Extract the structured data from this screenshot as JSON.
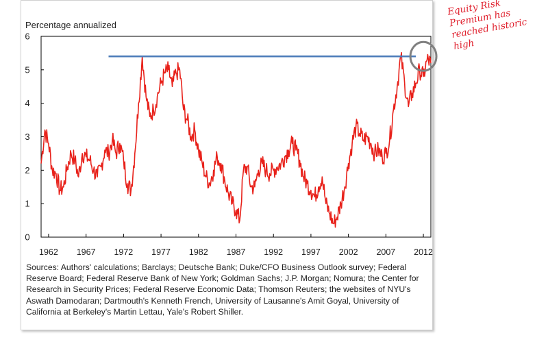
{
  "chart_data": {
    "type": "line",
    "ylabel": "Percentage annualized",
    "ylim": [
      0,
      6
    ],
    "xlim": [
      1961,
      2013
    ],
    "x_ticks": [
      "1962",
      "1967",
      "1972",
      "1977",
      "1982",
      "1987",
      "1992",
      "1997",
      "2002",
      "2007",
      "2012"
    ],
    "y_ticks": [
      "0",
      "1",
      "2",
      "3",
      "4",
      "5",
      "6"
    ],
    "series": [
      {
        "color": "#e8221b",
        "points": [
          [
            1961.0,
            2.2
          ],
          [
            1961.5,
            3.2
          ],
          [
            1962.0,
            2.8
          ],
          [
            1962.5,
            2.0
          ],
          [
            1963.0,
            1.9
          ],
          [
            1963.5,
            1.4
          ],
          [
            1964.0,
            1.5
          ],
          [
            1964.5,
            2.1
          ],
          [
            1965.0,
            2.5
          ],
          [
            1965.5,
            2.3
          ],
          [
            1966.0,
            1.8
          ],
          [
            1966.5,
            2.5
          ],
          [
            1967.0,
            2.4
          ],
          [
            1967.5,
            2.3
          ],
          [
            1968.0,
            2.0
          ],
          [
            1968.5,
            1.8
          ],
          [
            1969.0,
            2.1
          ],
          [
            1969.5,
            2.6
          ],
          [
            1970.0,
            2.5
          ],
          [
            1970.5,
            2.9
          ],
          [
            1971.0,
            2.5
          ],
          [
            1971.5,
            2.8
          ],
          [
            1972.0,
            2.3
          ],
          [
            1972.5,
            1.6
          ],
          [
            1973.0,
            1.4
          ],
          [
            1973.5,
            2.5
          ],
          [
            1974.0,
            4.0
          ],
          [
            1974.5,
            5.4
          ],
          [
            1975.0,
            4.2
          ],
          [
            1975.5,
            3.6
          ],
          [
            1976.0,
            3.8
          ],
          [
            1976.5,
            4.2
          ],
          [
            1977.0,
            4.6
          ],
          [
            1977.5,
            4.9
          ],
          [
            1978.0,
            5.0
          ],
          [
            1978.5,
            4.5
          ],
          [
            1979.0,
            4.9
          ],
          [
            1979.5,
            5.0
          ],
          [
            1980.0,
            3.8
          ],
          [
            1980.5,
            3.5
          ],
          [
            1981.0,
            3.0
          ],
          [
            1981.5,
            3.2
          ],
          [
            1982.0,
            2.6
          ],
          [
            1982.5,
            2.2
          ],
          [
            1983.0,
            1.8
          ],
          [
            1983.5,
            1.6
          ],
          [
            1984.0,
            2.0
          ],
          [
            1984.5,
            2.4
          ],
          [
            1985.0,
            2.2
          ],
          [
            1985.5,
            1.7
          ],
          [
            1986.0,
            1.3
          ],
          [
            1986.5,
            1.0
          ],
          [
            1987.0,
            0.8
          ],
          [
            1987.5,
            0.5
          ],
          [
            1988.0,
            2.0
          ],
          [
            1988.5,
            2.1
          ],
          [
            1989.0,
            1.5
          ],
          [
            1989.5,
            1.5
          ],
          [
            1990.0,
            2.0
          ],
          [
            1990.5,
            2.2
          ],
          [
            1991.0,
            2.0
          ],
          [
            1991.5,
            1.9
          ],
          [
            1992.0,
            2.0
          ],
          [
            1992.5,
            2.1
          ],
          [
            1993.0,
            2.2
          ],
          [
            1993.5,
            2.4
          ],
          [
            1994.0,
            2.6
          ],
          [
            1994.5,
            2.8
          ],
          [
            1995.0,
            2.6
          ],
          [
            1995.5,
            2.3
          ],
          [
            1996.0,
            1.8
          ],
          [
            1996.5,
            1.6
          ],
          [
            1997.0,
            1.4
          ],
          [
            1997.5,
            1.2
          ],
          [
            1998.0,
            1.5
          ],
          [
            1998.5,
            1.8
          ],
          [
            1999.0,
            1.0
          ],
          [
            1999.5,
            0.7
          ],
          [
            2000.0,
            0.4
          ],
          [
            2000.5,
            0.6
          ],
          [
            2001.0,
            1.0
          ],
          [
            2001.5,
            1.5
          ],
          [
            2002.0,
            2.2
          ],
          [
            2002.5,
            2.8
          ],
          [
            2003.0,
            3.3
          ],
          [
            2003.5,
            3.1
          ],
          [
            2004.0,
            2.9
          ],
          [
            2004.5,
            3.0
          ],
          [
            2005.0,
            2.8
          ],
          [
            2005.5,
            2.5
          ],
          [
            2006.0,
            2.6
          ],
          [
            2006.5,
            2.4
          ],
          [
            2007.0,
            2.5
          ],
          [
            2007.5,
            2.9
          ],
          [
            2008.0,
            3.8
          ],
          [
            2008.5,
            4.5
          ],
          [
            2009.0,
            5.4
          ],
          [
            2009.5,
            4.6
          ],
          [
            2010.0,
            3.9
          ],
          [
            2010.5,
            4.3
          ],
          [
            2011.0,
            4.6
          ],
          [
            2011.5,
            5.0
          ],
          [
            2012.0,
            4.8
          ],
          [
            2012.5,
            5.3
          ],
          [
            2013.0,
            5.2
          ]
        ]
      }
    ],
    "reference_line": {
      "y": 5.4,
      "x_start": 1970,
      "x_end": 2011,
      "color": "#4a7ab8"
    },
    "highlight_circle": {
      "x": 2012,
      "y": 5.4,
      "color": "#808080"
    }
  },
  "annotation_lines": [
    "Equity Risk",
    "Premium has",
    "reached historic",
    "high"
  ],
  "sources_text": "Sources: Authors' calculations; Barclays; Deutsche Bank; Duke/CFO Business Outlook survey; Federal Reserve Board; Federal Reserve Bank of New York; Goldman Sachs; J.P. Morgan; Nomura; the Center for Research in Security Prices; Federal Reserve Economic Data; Thomson Reuters; the websites of NYU's Aswath Damodaran; Dartmouth's Kenneth French, University of Lausanne's Amit Goyal, University of California at Berkeley's Martin Lettau, Yale's Robert Shiller."
}
